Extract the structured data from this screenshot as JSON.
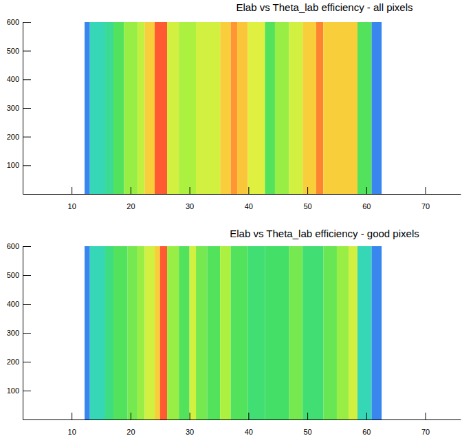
{
  "chart_data": [
    {
      "type": "heatmap",
      "title": "Elab vs Theta_lab efficiency - all pixels",
      "xlim": [
        1.7,
        76
      ],
      "xticks": [
        10,
        20,
        30,
        40,
        50,
        60,
        70
      ],
      "ylim": [
        0,
        600
      ],
      "yticks": [
        100,
        200,
        300,
        400,
        500,
        600
      ],
      "bins": [
        12.2,
        13.1,
        15.7,
        17.1,
        18.9,
        21.2,
        22.4,
        24.1,
        26.2,
        28.2,
        31.1,
        35.2,
        37,
        38.1,
        39.9,
        42.8,
        44.5,
        46.9,
        49.2,
        51.5,
        52.7,
        58.5,
        60.9,
        62.6
      ],
      "values": [
        0.1,
        0.3,
        0.35,
        0.45,
        0.55,
        0.62,
        0.78,
        0.95,
        0.65,
        0.58,
        0.65,
        0.78,
        0.88,
        0.8,
        0.68,
        0.45,
        0.55,
        0.65,
        0.78,
        0.9,
        0.78,
        0.45,
        0.1
      ],
      "color_range": [
        0,
        1
      ]
    },
    {
      "type": "heatmap",
      "title": "Elab vs Theta_lab efficiency - good pixels",
      "xlim": [
        1.7,
        76
      ],
      "xticks": [
        10,
        20,
        30,
        40,
        50,
        60,
        70
      ],
      "ylim": [
        0,
        600
      ],
      "yticks": [
        100,
        200,
        300,
        400,
        500,
        600
      ],
      "bins": [
        12.2,
        13.1,
        15.7,
        17.1,
        19.5,
        21.2,
        22.4,
        24.1,
        25,
        26.2,
        28.2,
        30,
        31.1,
        33,
        35.2,
        37,
        39.9,
        42.8,
        46.9,
        49.2,
        52.7,
        55,
        57,
        58.5,
        60.9,
        62.6
      ],
      "values": [
        0.1,
        0.3,
        0.38,
        0.45,
        0.5,
        0.55,
        0.65,
        0.78,
        0.95,
        0.55,
        0.45,
        0.65,
        0.5,
        0.45,
        0.58,
        0.45,
        0.4,
        0.42,
        0.5,
        0.4,
        0.48,
        0.55,
        0.65,
        0.3,
        0.1
      ],
      "color_range": [
        0,
        1
      ]
    }
  ]
}
